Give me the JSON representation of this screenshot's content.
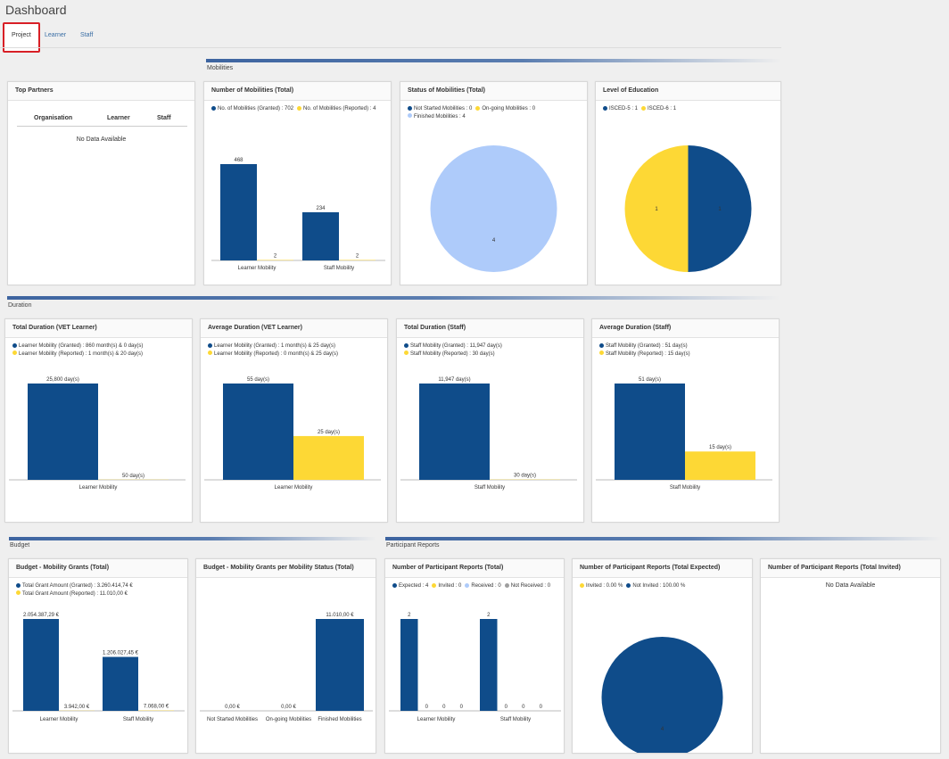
{
  "page": {
    "title": "Dashboard"
  },
  "tabs": [
    {
      "label": "Project",
      "active": true
    },
    {
      "label": "Learner"
    },
    {
      "label": "Staff"
    }
  ],
  "colors": {
    "blue": "#0f4c8a",
    "yellow": "#fdd835",
    "lightblue": "#aecbfa",
    "grey": "#9e9e9e"
  },
  "sections": {
    "mobilities": "Mobilities",
    "duration": "Duration",
    "budget": "Budget",
    "participant_reports": "Participant Reports"
  },
  "top_partners": {
    "title": "Top Partners",
    "columns": [
      "Organisation",
      "Learner",
      "Staff"
    ],
    "empty": "No Data Available"
  },
  "cards": {
    "mob_total": {
      "title": "Number of Mobilities (Total)",
      "legend": [
        {
          "color": "#0f4c8a",
          "text": "No. of Mobilities (Granted) : 702"
        },
        {
          "color": "#fdd835",
          "text": "No. of Mobilities (Reported) : 4"
        }
      ]
    },
    "mob_status": {
      "title": "Status of Mobilities (Total)",
      "legend": [
        {
          "color": "#0f4c8a",
          "text": "Not Started Mobilities : 0"
        },
        {
          "color": "#fdd835",
          "text": "On-going Mobilities : 0"
        },
        {
          "color": "#aecbfa",
          "text": "Finished Mobilities : 4"
        }
      ]
    },
    "education": {
      "title": "Level of Education",
      "legend": [
        {
          "color": "#0f4c8a",
          "text": "ISCED-5 : 1"
        },
        {
          "color": "#fdd835",
          "text": "ISCED-6 : 1"
        }
      ]
    },
    "dur_vet_total": {
      "title": "Total Duration (VET Learner)",
      "legend": [
        {
          "color": "#0f4c8a",
          "text": "Learner Mobility (Granted) : 860 month(s) & 0 day(s)"
        },
        {
          "color": "#fdd835",
          "text": "Learner Mobility (Reported) : 1 month(s) & 20 day(s)"
        }
      ]
    },
    "dur_vet_avg": {
      "title": "Average Duration (VET Learner)",
      "legend": [
        {
          "color": "#0f4c8a",
          "text": "Learner Mobility (Granted) : 1 month(s) & 25 day(s)"
        },
        {
          "color": "#fdd835",
          "text": "Learner Mobility (Reported) : 0 month(s) & 25 day(s)"
        }
      ]
    },
    "dur_staff_total": {
      "title": "Total Duration (Staff)",
      "legend": [
        {
          "color": "#0f4c8a",
          "text": "Staff Mobility (Granted) : 11,947 day(s)"
        },
        {
          "color": "#fdd835",
          "text": "Staff Mobility (Reported) : 30 day(s)"
        }
      ]
    },
    "dur_staff_avg": {
      "title": "Average Duration (Staff)",
      "legend": [
        {
          "color": "#0f4c8a",
          "text": "Staff Mobility (Granted) : 51 day(s)"
        },
        {
          "color": "#fdd835",
          "text": "Staff Mobility (Reported) : 15 day(s)"
        }
      ]
    },
    "budget_total": {
      "title": "Budget - Mobility Grants (Total)",
      "legend": [
        {
          "color": "#0f4c8a",
          "text": "Total Grant Amount (Granted) : 3.260.414,74 €"
        },
        {
          "color": "#fdd835",
          "text": "Total Grant Amount (Reported) : 11.010,00 €"
        }
      ]
    },
    "budget_status": {
      "title": "Budget - Mobility Grants per Mobility Status (Total)",
      "legend": []
    },
    "reports_total": {
      "title": "Number of Participant Reports (Total)",
      "legend": [
        {
          "color": "#0f4c8a",
          "text": "Expected : 4"
        },
        {
          "color": "#fdd835",
          "text": "Invited : 0"
        },
        {
          "color": "#aecbfa",
          "text": "Received : 0"
        },
        {
          "color": "#9e9e9e",
          "text": "Not Received : 0"
        }
      ]
    },
    "reports_expected": {
      "title": "Number of Participant Reports (Total Expected)",
      "legend": [
        {
          "color": "#fdd835",
          "text": "Invited : 0.00 %"
        },
        {
          "color": "#0f4c8a",
          "text": "Not Invited : 100.00 %"
        }
      ]
    },
    "reports_invited": {
      "title": "Number of Participant Reports (Total Invited)",
      "empty": "No Data Available"
    }
  },
  "chart_data": [
    {
      "id": "mob_total",
      "type": "bar",
      "title": "Number of Mobilities (Total)",
      "categories": [
        "Learner Mobility",
        "Staff Mobility"
      ],
      "series": [
        {
          "name": "No. of Mobilities (Granted)",
          "values": [
            468,
            234
          ],
          "labels": [
            "468",
            "234"
          ]
        },
        {
          "name": "No. of Mobilities (Reported)",
          "values": [
            2,
            2
          ],
          "labels": [
            "2",
            "2"
          ]
        }
      ],
      "ylim": [
        0,
        468
      ]
    },
    {
      "id": "mob_status",
      "type": "pie",
      "title": "Status of Mobilities (Total)",
      "slices": [
        {
          "name": "Not Started Mobilities",
          "value": 0
        },
        {
          "name": "On-going Mobilities",
          "value": 0
        },
        {
          "name": "Finished Mobilities",
          "value": 4
        }
      ],
      "slice_labels": [
        "4"
      ]
    },
    {
      "id": "education",
      "type": "pie",
      "title": "Level of Education",
      "slices": [
        {
          "name": "ISCED-5",
          "value": 1
        },
        {
          "name": "ISCED-6",
          "value": 1
        }
      ],
      "slice_labels": [
        "1",
        "1"
      ]
    },
    {
      "id": "dur_vet_total",
      "type": "bar",
      "title": "Total Duration (VET Learner)",
      "categories": [
        "Learner Mobility"
      ],
      "series": [
        {
          "name": "Learner Mobility (Granted)",
          "values": [
            25800
          ],
          "labels": [
            "25,800 day(s)"
          ]
        },
        {
          "name": "Learner Mobility (Reported)",
          "values": [
            50
          ],
          "labels": [
            "50 day(s)"
          ]
        }
      ],
      "ylim": [
        0,
        25800
      ]
    },
    {
      "id": "dur_vet_avg",
      "type": "bar",
      "title": "Average Duration (VET Learner)",
      "categories": [
        "Learner Mobility"
      ],
      "series": [
        {
          "name": "Learner Mobility (Granted)",
          "values": [
            55
          ],
          "labels": [
            "55 day(s)"
          ]
        },
        {
          "name": "Learner Mobility (Reported)",
          "values": [
            25
          ],
          "labels": [
            "25 day(s)"
          ]
        }
      ],
      "ylim": [
        0,
        55
      ]
    },
    {
      "id": "dur_staff_total",
      "type": "bar",
      "title": "Total Duration (Staff)",
      "categories": [
        "Staff Mobility"
      ],
      "series": [
        {
          "name": "Staff Mobility (Granted)",
          "values": [
            11947
          ],
          "labels": [
            "11,947 day(s)"
          ]
        },
        {
          "name": "Staff Mobility (Reported)",
          "values": [
            30
          ],
          "labels": [
            "30 day(s)"
          ]
        }
      ],
      "ylim": [
        0,
        11947
      ]
    },
    {
      "id": "dur_staff_avg",
      "type": "bar",
      "title": "Average Duration (Staff)",
      "categories": [
        "Staff Mobility"
      ],
      "series": [
        {
          "name": "Staff Mobility (Granted)",
          "values": [
            51
          ],
          "labels": [
            "51 day(s)"
          ]
        },
        {
          "name": "Staff Mobility (Reported)",
          "values": [
            15
          ],
          "labels": [
            "15 day(s)"
          ]
        }
      ],
      "ylim": [
        0,
        51
      ]
    },
    {
      "id": "budget_total",
      "type": "bar",
      "title": "Budget - Mobility Grants (Total)",
      "categories": [
        "Learner Mobility",
        "Staff Mobility"
      ],
      "series": [
        {
          "name": "Total Grant Amount (Granted)",
          "values": [
            2054387.29,
            1206027.45
          ],
          "labels": [
            "2.054.387,29 €",
            "1.206.027,45 €"
          ]
        },
        {
          "name": "Total Grant Amount (Reported)",
          "values": [
            3942,
            7068
          ],
          "labels": [
            "3.942,00 €",
            "7.068,00 €"
          ]
        }
      ],
      "ylim": [
        0,
        2054387.29
      ]
    },
    {
      "id": "budget_status",
      "type": "bar",
      "title": "Budget - Mobility Grants per Mobility Status (Total)",
      "categories": [
        "Not Started Mobilities",
        "On-going Mobilities",
        "Finished Mobilities"
      ],
      "series": [
        {
          "values": [
            0,
            0,
            11010
          ],
          "labels": [
            "0,00 €",
            "0,00 €",
            "11.010,00 €"
          ]
        }
      ],
      "ylim": [
        0,
        11010
      ]
    },
    {
      "id": "reports_total",
      "type": "bar",
      "title": "Number of Participant Reports (Total)",
      "categories": [
        "Learner Mobility",
        "Staff Mobility"
      ],
      "series": [
        {
          "name": "Expected",
          "values": [
            2,
            2
          ],
          "labels": [
            "2",
            "2"
          ]
        },
        {
          "name": "Invited",
          "values": [
            0,
            0
          ],
          "labels": [
            "0",
            "0"
          ]
        },
        {
          "name": "Received",
          "values": [
            0,
            0
          ],
          "labels": [
            "0",
            "0"
          ]
        },
        {
          "name": "Not Received",
          "values": [
            0,
            0
          ],
          "labels": [
            "0",
            "0"
          ]
        }
      ],
      "ylim": [
        0,
        2
      ]
    },
    {
      "id": "reports_expected",
      "type": "pie",
      "title": "Number of Participant Reports (Total Expected)",
      "slices": [
        {
          "name": "Invited",
          "value": 0
        },
        {
          "name": "Not Invited",
          "value": 4
        }
      ],
      "slice_labels": [
        "4"
      ]
    }
  ]
}
